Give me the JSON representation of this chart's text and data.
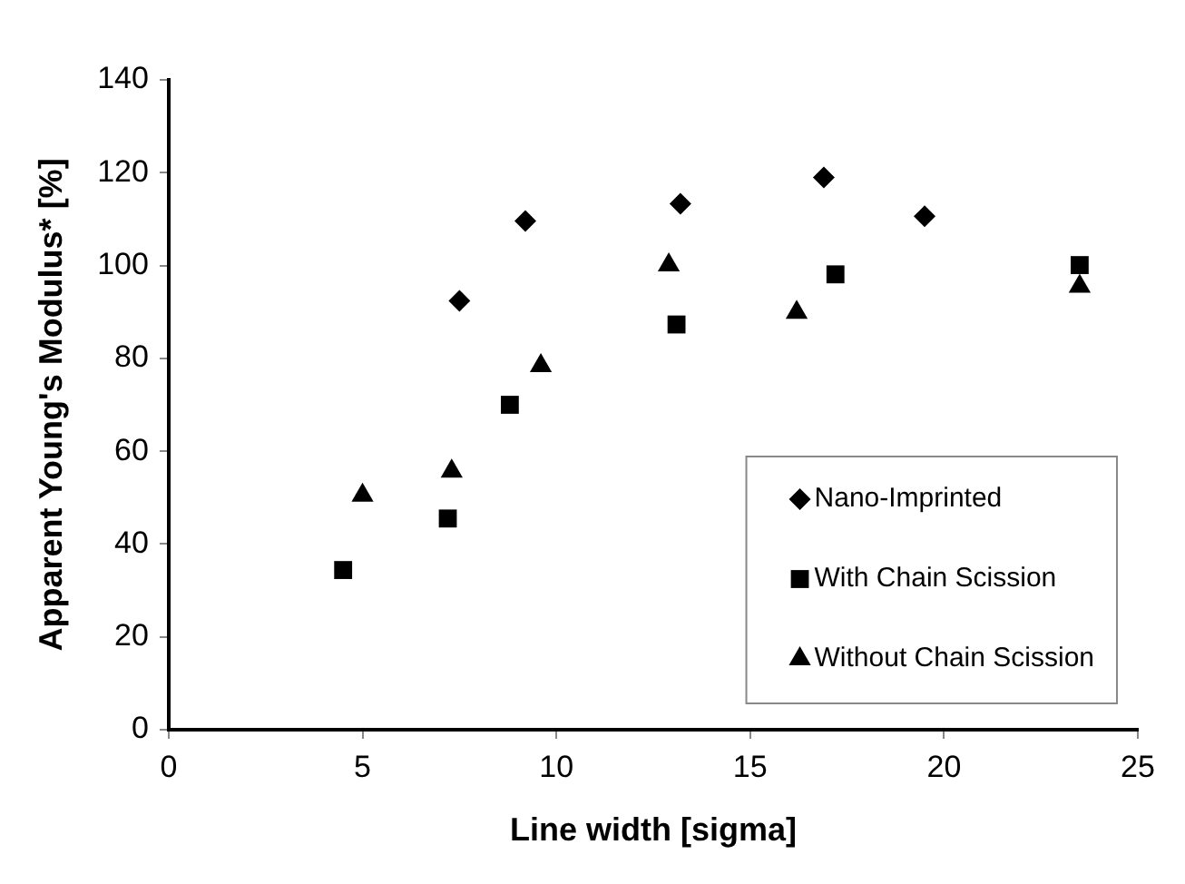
{
  "chart_data": {
    "type": "scatter",
    "xlabel": "Line width [sigma]",
    "ylabel": "Apparent Young's Modulus* [%]",
    "series": [
      {
        "name": "Nano-Imprinted",
        "color": "#000000",
        "marker": "diamond",
        "x": [
          7.5,
          9.2,
          13.2,
          16.9,
          19.5
        ],
        "values": [
          92.4,
          109.6,
          113.3,
          119,
          110.6
        ]
      },
      {
        "name": "With Chain Scission",
        "color": "#000000",
        "marker": "square",
        "x": [
          4.5,
          7.2,
          8.8,
          13.1,
          17.2,
          23.5
        ],
        "values": [
          34.4,
          45.5,
          70,
          87.3,
          98.1,
          100.1
        ]
      },
      {
        "name": "Without Chain Scission",
        "color": "#000000",
        "marker": "triangle",
        "x": [
          5,
          7.3,
          9.6,
          12.9,
          16.2,
          23.5
        ],
        "values": [
          50.5,
          55.7,
          78.4,
          100.1,
          89.9,
          95.5
        ]
      }
    ],
    "xlim": [
      0,
      25
    ],
    "xticks": [
      0,
      5,
      10,
      15,
      20,
      25
    ],
    "ylim": [
      0,
      140
    ],
    "yticks": [
      0,
      20,
      40,
      60,
      80,
      100,
      120,
      140
    ],
    "grid": false,
    "legend": "bottom right"
  }
}
